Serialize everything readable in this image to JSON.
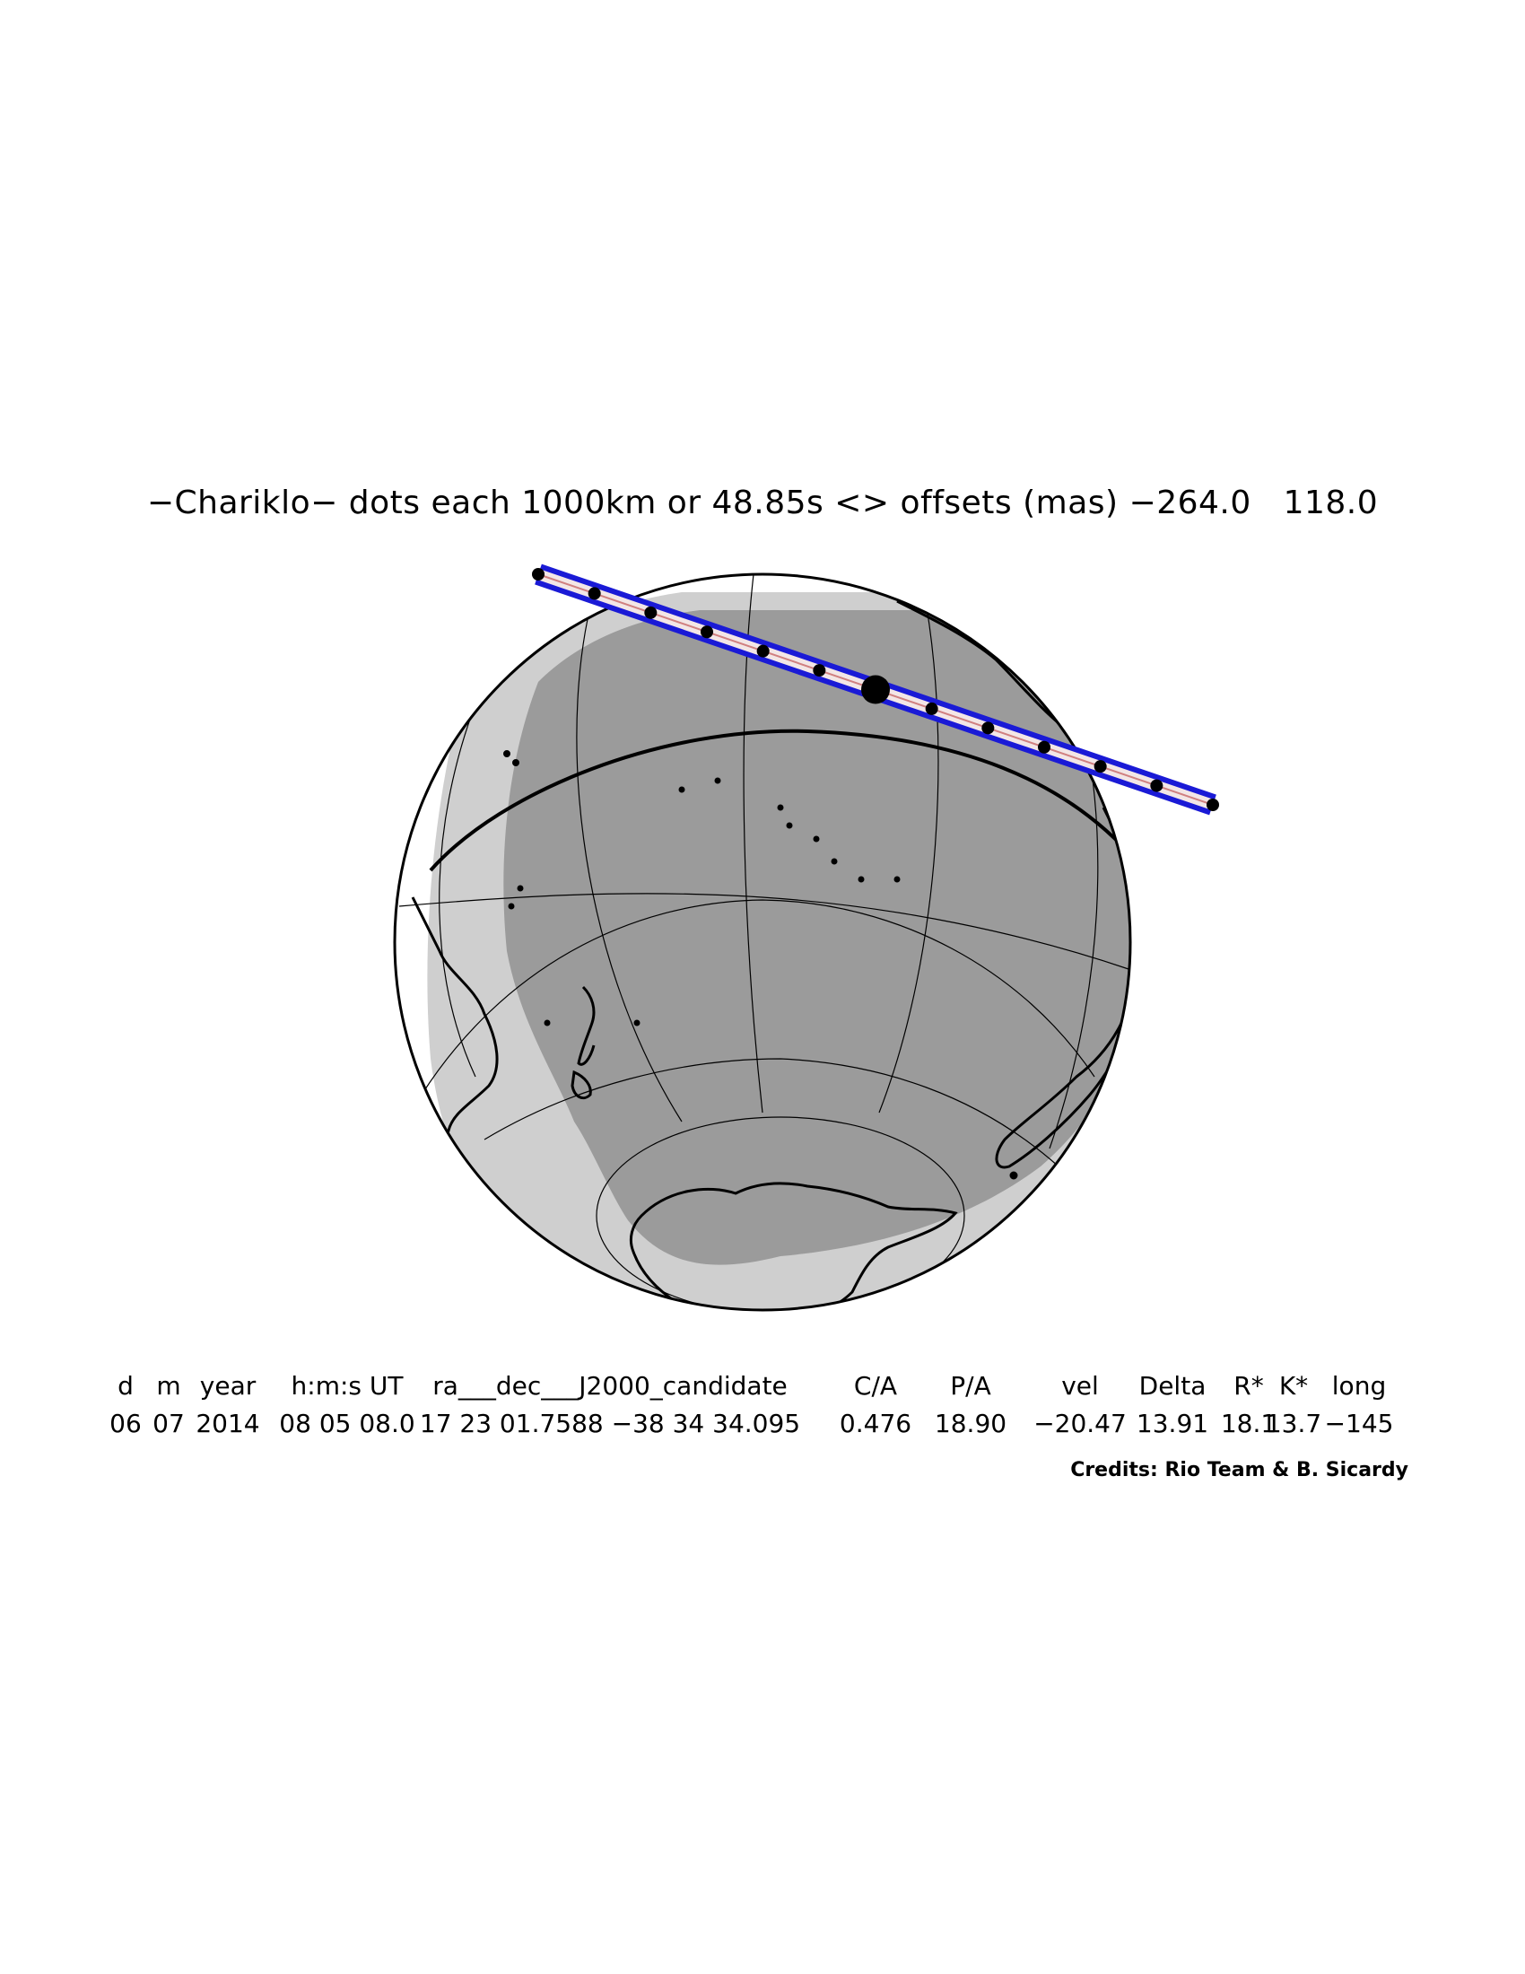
{
  "title": "−Chariklo− dots each 1000km or 48.85s <> offsets (mas) −264.0   118.0",
  "map": {
    "colors": {
      "night": "#9b9b9b",
      "twilight": "#cfcfcf",
      "day": "#ffffff",
      "coast": "#000000",
      "track": "#1a1ad6",
      "centerline": "#d08080",
      "grid": "#000000"
    },
    "track": {
      "dot_count": 13,
      "dot_interval_km": 1000,
      "dot_interval_s": 48.85,
      "offsets_mas": [
        -264.0,
        118.0
      ]
    }
  },
  "table": {
    "headers": [
      "d",
      "m",
      "year",
      "h:m:s UT",
      "ra___dec___J2000_candidate",
      "C/A",
      "P/A",
      "vel",
      "Delta",
      "R*",
      "K*",
      "long"
    ],
    "values": [
      "06",
      "07",
      "2014",
      "08 05 08.0",
      "17 23 01.7588 −38 34 34.095",
      "0.476",
      "18.90",
      "−20.47",
      "13.91",
      "18.1",
      "13.7",
      "−145"
    ]
  },
  "credits": "Credits: Rio Team & B. Sicardy"
}
